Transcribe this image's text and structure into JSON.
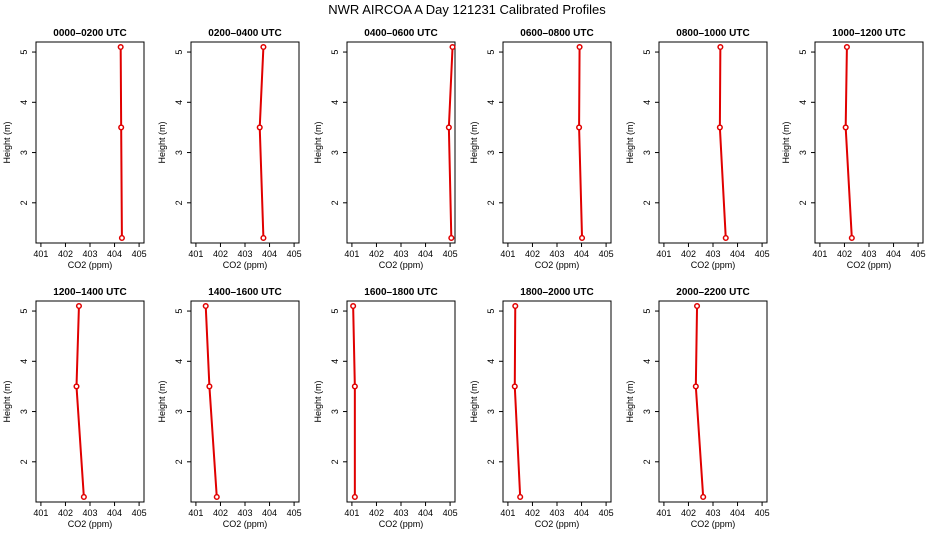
{
  "figure": {
    "title": "NWR AIRCOA A  Day 121231  Calibrated Profiles"
  },
  "chart_data": [
    {
      "type": "line",
      "title": "0000–0200 UTC",
      "xlabel": "CO2 (ppm)",
      "ylabel": "Height (m)",
      "xlim": [
        400.8,
        405.2
      ],
      "ylim": [
        1.2,
        5.2
      ],
      "xticks": [
        401,
        402,
        403,
        404,
        405
      ],
      "yticks": [
        2,
        3,
        4,
        5
      ],
      "x": [
        404.25,
        404.27,
        404.3
      ],
      "y": [
        5.1,
        3.5,
        1.3
      ]
    },
    {
      "type": "line",
      "title": "0200–0400 UTC",
      "xlabel": "CO2 (ppm)",
      "ylabel": "Height (m)",
      "xlim": [
        400.8,
        405.2
      ],
      "ylim": [
        1.2,
        5.2
      ],
      "xticks": [
        401,
        402,
        403,
        404,
        405
      ],
      "yticks": [
        2,
        3,
        4,
        5
      ],
      "x": [
        403.75,
        403.6,
        403.75
      ],
      "y": [
        5.1,
        3.5,
        1.3
      ]
    },
    {
      "type": "line",
      "title": "0400–0600 UTC",
      "xlabel": "CO2 (ppm)",
      "ylabel": "Height (m)",
      "xlim": [
        400.8,
        405.2
      ],
      "ylim": [
        1.2,
        5.2
      ],
      "xticks": [
        401,
        402,
        403,
        404,
        405
      ],
      "yticks": [
        2,
        3,
        4,
        5
      ],
      "x": [
        405.1,
        404.95,
        405.05
      ],
      "y": [
        5.1,
        3.5,
        1.3
      ]
    },
    {
      "type": "line",
      "title": "0600–0800 UTC",
      "xlabel": "CO2 (ppm)",
      "ylabel": "Height (m)",
      "xlim": [
        400.8,
        405.2
      ],
      "ylim": [
        1.2,
        5.2
      ],
      "xticks": [
        401,
        402,
        403,
        404,
        405
      ],
      "yticks": [
        2,
        3,
        4,
        5
      ],
      "x": [
        403.92,
        403.9,
        404.02
      ],
      "y": [
        5.1,
        3.5,
        1.3
      ]
    },
    {
      "type": "line",
      "title": "0800–1000 UTC",
      "xlabel": "CO2 (ppm)",
      "ylabel": "Height (m)",
      "xlim": [
        400.8,
        405.2
      ],
      "ylim": [
        1.2,
        5.2
      ],
      "xticks": [
        401,
        402,
        403,
        404,
        405
      ],
      "yticks": [
        2,
        3,
        4,
        5
      ],
      "x": [
        403.3,
        403.28,
        403.52
      ],
      "y": [
        5.1,
        3.5,
        1.3
      ]
    },
    {
      "type": "line",
      "title": "1000–1200 UTC",
      "xlabel": "CO2 (ppm)",
      "ylabel": "Height (m)",
      "xlim": [
        400.8,
        405.2
      ],
      "ylim": [
        1.2,
        5.2
      ],
      "xticks": [
        401,
        402,
        403,
        404,
        405
      ],
      "yticks": [
        2,
        3,
        4,
        5
      ],
      "x": [
        402.1,
        402.05,
        402.3
      ],
      "y": [
        5.1,
        3.5,
        1.3
      ]
    },
    {
      "type": "line",
      "title": "1200–1400 UTC",
      "xlabel": "CO2 (ppm)",
      "ylabel": "Height (m)",
      "xlim": [
        400.8,
        405.2
      ],
      "ylim": [
        1.2,
        5.2
      ],
      "xticks": [
        401,
        402,
        403,
        404,
        405
      ],
      "yticks": [
        2,
        3,
        4,
        5
      ],
      "x": [
        402.55,
        402.45,
        402.75
      ],
      "y": [
        5.1,
        3.5,
        1.3
      ]
    },
    {
      "type": "line",
      "title": "1400–1600 UTC",
      "xlabel": "CO2 (ppm)",
      "ylabel": "Height (m)",
      "xlim": [
        400.8,
        405.2
      ],
      "ylim": [
        1.2,
        5.2
      ],
      "xticks": [
        401,
        402,
        403,
        404,
        405
      ],
      "yticks": [
        2,
        3,
        4,
        5
      ],
      "x": [
        401.4,
        401.55,
        401.85
      ],
      "y": [
        5.1,
        3.5,
        1.3
      ]
    },
    {
      "type": "line",
      "title": "1600–1800 UTC",
      "xlabel": "CO2 (ppm)",
      "ylabel": "Height (m)",
      "xlim": [
        400.8,
        405.2
      ],
      "ylim": [
        1.2,
        5.2
      ],
      "xticks": [
        401,
        402,
        403,
        404,
        405
      ],
      "yticks": [
        2,
        3,
        4,
        5
      ],
      "x": [
        401.05,
        401.12,
        401.12
      ],
      "y": [
        5.1,
        3.5,
        1.3
      ]
    },
    {
      "type": "line",
      "title": "1800–2000 UTC",
      "xlabel": "CO2 (ppm)",
      "ylabel": "Height (m)",
      "xlim": [
        400.8,
        405.2
      ],
      "ylim": [
        1.2,
        5.2
      ],
      "xticks": [
        401,
        402,
        403,
        404,
        405
      ],
      "yticks": [
        2,
        3,
        4,
        5
      ],
      "x": [
        401.3,
        401.28,
        401.5
      ],
      "y": [
        5.1,
        3.5,
        1.3
      ]
    },
    {
      "type": "line",
      "title": "2000–2200 UTC",
      "xlabel": "CO2 (ppm)",
      "ylabel": "Height (m)",
      "xlim": [
        400.8,
        405.2
      ],
      "ylim": [
        1.2,
        5.2
      ],
      "xticks": [
        401,
        402,
        403,
        404,
        405
      ],
      "yticks": [
        2,
        3,
        4,
        5
      ],
      "x": [
        402.35,
        402.3,
        402.6
      ],
      "y": [
        5.1,
        3.5,
        1.3
      ]
    }
  ]
}
